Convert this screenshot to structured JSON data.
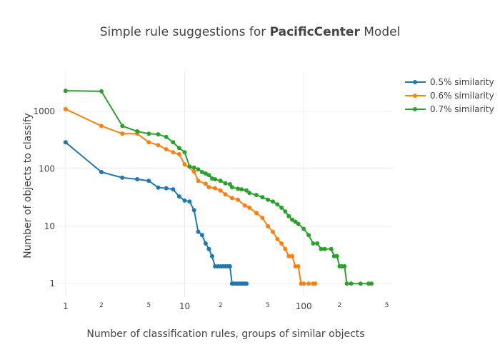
{
  "chart_data": {
    "type": "line",
    "title_prefix": "Simple rule suggestions for ",
    "title_bold": "PacificCenter",
    "title_suffix": " Model",
    "xlabel": "Number of classification rules, groups of similar objects",
    "ylabel": "Number of objects to classify",
    "x_scale": "log",
    "y_scale": "log",
    "xlim": [
      0.85,
      560
    ],
    "ylim": [
      0.6,
      5000
    ],
    "x_major_ticks": [
      {
        "value": 1,
        "label": "1"
      },
      {
        "value": 10,
        "label": "10"
      },
      {
        "value": 100,
        "label": "100"
      }
    ],
    "x_minor_ticks": [
      {
        "value": 2,
        "label": "2"
      },
      {
        "value": 5,
        "label": "5"
      },
      {
        "value": 20,
        "label": "2"
      },
      {
        "value": 50,
        "label": "5"
      },
      {
        "value": 200,
        "label": "2"
      },
      {
        "value": 500,
        "label": "5"
      }
    ],
    "y_ticks": [
      {
        "value": 1,
        "label": "1"
      },
      {
        "value": 10,
        "label": "10"
      },
      {
        "value": 100,
        "label": "100"
      },
      {
        "value": 1000,
        "label": "1000"
      }
    ],
    "grid": true,
    "legend_position": "top-right",
    "series": [
      {
        "name": "0.5% similarity",
        "color": "#1f77b4",
        "x": [
          1,
          2,
          3,
          4,
          5,
          6,
          7,
          8,
          9,
          10,
          11,
          12,
          13,
          14,
          15,
          16,
          17,
          18,
          19,
          20,
          21,
          22,
          23,
          24,
          25,
          26,
          27,
          28,
          29,
          30,
          31,
          32,
          33
        ],
        "y": [
          290,
          88,
          70,
          66,
          62,
          47,
          46,
          44,
          33,
          28,
          27,
          19,
          8,
          7,
          5,
          4,
          3,
          2,
          2,
          2,
          2,
          2,
          2,
          2,
          1,
          1,
          1,
          1,
          1,
          1,
          1,
          1,
          1
        ]
      },
      {
        "name": "0.6% similarity",
        "color": "#ff7f0e",
        "x": [
          1,
          2,
          3,
          4,
          5,
          6,
          7,
          8,
          9,
          10,
          12,
          13,
          15,
          16,
          18,
          20,
          22,
          25,
          28,
          32,
          35,
          40,
          45,
          50,
          55,
          60,
          65,
          70,
          75,
          80,
          85,
          90,
          95,
          100,
          110,
          120,
          125
        ],
        "y": [
          1100,
          560,
          410,
          410,
          290,
          260,
          220,
          195,
          180,
          120,
          90,
          62,
          55,
          48,
          46,
          42,
          36,
          31,
          29,
          23,
          21,
          17,
          14,
          10,
          8,
          6,
          5,
          4,
          3,
          3,
          2,
          2,
          1,
          1,
          1,
          1,
          1
        ]
      },
      {
        "name": "0.7% similarity",
        "color": "#2ca02c",
        "x": [
          1,
          2,
          3,
          4,
          5,
          6,
          7,
          8,
          9,
          10,
          11,
          12,
          13,
          14,
          15,
          16,
          17,
          18,
          20,
          22,
          24,
          25,
          28,
          30,
          33,
          35,
          40,
          45,
          50,
          55,
          60,
          65,
          70,
          75,
          80,
          85,
          90,
          100,
          110,
          120,
          130,
          140,
          150,
          170,
          180,
          190,
          200,
          210,
          220,
          230,
          250,
          300,
          350,
          370
        ],
        "y": [
          2300,
          2250,
          560,
          450,
          410,
          400,
          360,
          290,
          230,
          195,
          110,
          105,
          98,
          88,
          83,
          78,
          68,
          66,
          62,
          56,
          54,
          48,
          45,
          44,
          42,
          38,
          35,
          32,
          29,
          27,
          24,
          21,
          18,
          15,
          13,
          12,
          11,
          9,
          7,
          5,
          5,
          4,
          4,
          4,
          3,
          3,
          2,
          2,
          2,
          1,
          1,
          1,
          1,
          1
        ]
      }
    ]
  }
}
